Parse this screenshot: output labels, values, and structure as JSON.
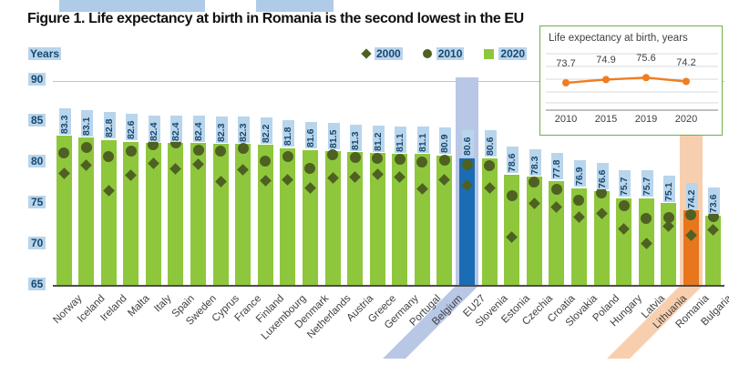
{
  "title": "Figure 1. Life expectancy at birth in Romania is the second lowest in the EU",
  "y_axis": {
    "label": "Years",
    "ticks": [
      90,
      85,
      80,
      75,
      70,
      65
    ],
    "min": 65,
    "max": 90
  },
  "legend": {
    "items": [
      {
        "label": "2000",
        "marker": "diamond"
      },
      {
        "label": "2010",
        "marker": "circle"
      },
      {
        "label": "2020",
        "marker": "square"
      }
    ]
  },
  "colors": {
    "bar_green": "#8ec73c",
    "marker_olive": "#4e6122",
    "eu27_bar": "#1a6cb4",
    "eu27_band": "#b9c7e6",
    "romania_bar": "#e8761d",
    "romania_band": "#f8cfae",
    "label_bg": "#b9d5ec",
    "label_text": "#17486e",
    "gridline": "#c3c3c3",
    "axis": "#4d4d4d",
    "category_text": "#3f3f3f",
    "inset_border": "#6fae46",
    "inset_line": "#f07d1f",
    "inset_grid": "#d9d9d9",
    "inset_axis": "#9a9a9a",
    "top_decoration": "#afcbe8"
  },
  "chart_data": [
    {
      "type": "bar",
      "title": "Figure 1. Life expectancy at birth in Romania is the second lowest in the EU",
      "xlabel": "",
      "ylabel": "Years",
      "ylim": [
        65,
        90
      ],
      "grid": "top-line-only",
      "legend_position": "top",
      "categories": [
        "Norway",
        "Iceland",
        "Ireland",
        "Malta",
        "Italy",
        "Spain",
        "Sweden",
        "Cyprus",
        "France",
        "Finland",
        "Luxembourg",
        "Denmark",
        "Netherlands",
        "Austria",
        "Greece",
        "Germany",
        "Portugal",
        "Belgium",
        "EU27",
        "Slovenia",
        "Estonia",
        "Czechia",
        "Croatia",
        "Slovakia",
        "Poland",
        "Hungary",
        "Latvia",
        "Lithuania",
        "Romania",
        "Bulgaria"
      ],
      "series": [
        {
          "name": "2000",
          "style": "diamond-marker",
          "values": [
            78.7,
            79.7,
            76.6,
            78.5,
            79.9,
            79.3,
            79.8,
            77.7,
            79.2,
            77.8,
            78.0,
            76.9,
            78.2,
            78.3,
            78.6,
            78.3,
            76.8,
            77.9,
            77.3,
            76.9,
            71.0,
            75.1,
            74.6,
            73.4,
            73.8,
            71.9,
            70.2,
            72.3,
            71.2,
            71.8
          ]
        },
        {
          "name": "2010",
          "style": "circle-marker",
          "values": [
            81.2,
            81.9,
            80.8,
            81.5,
            82.2,
            82.4,
            81.6,
            81.5,
            81.8,
            80.2,
            80.8,
            79.3,
            81.0,
            80.7,
            80.6,
            80.5,
            80.1,
            80.3,
            79.8,
            79.7,
            76.0,
            77.7,
            76.8,
            75.5,
            76.3,
            74.8,
            73.2,
            73.3,
            73.7,
            73.5
          ]
        },
        {
          "name": "2020",
          "style": "bar",
          "values": [
            83.3,
            83.1,
            82.8,
            82.6,
            82.4,
            82.4,
            82.4,
            82.3,
            82.3,
            82.2,
            81.8,
            81.6,
            81.5,
            81.3,
            81.2,
            81.1,
            81.1,
            80.9,
            80.6,
            80.6,
            78.6,
            78.3,
            77.8,
            76.9,
            76.6,
            75.7,
            75.7,
            75.1,
            74.2,
            73.6
          ]
        }
      ],
      "data_labels": "2020 values shown rotated above bars",
      "highlights": [
        {
          "category": "EU27",
          "bar_color": "#1a6cb4",
          "band_color": "#b9c7e6",
          "band_top": -4
        },
        {
          "category": "Romania",
          "bar_color": "#e8761d",
          "band_color": "#f8cfae",
          "band_top": 53
        }
      ]
    },
    {
      "type": "line",
      "title": "Life expectancy at birth, years",
      "x": [
        "2010",
        "2015",
        "2019",
        "2020"
      ],
      "values": [
        73.7,
        74.9,
        75.6,
        74.2
      ],
      "grid": "horizontal",
      "legend_position": "none"
    }
  ]
}
